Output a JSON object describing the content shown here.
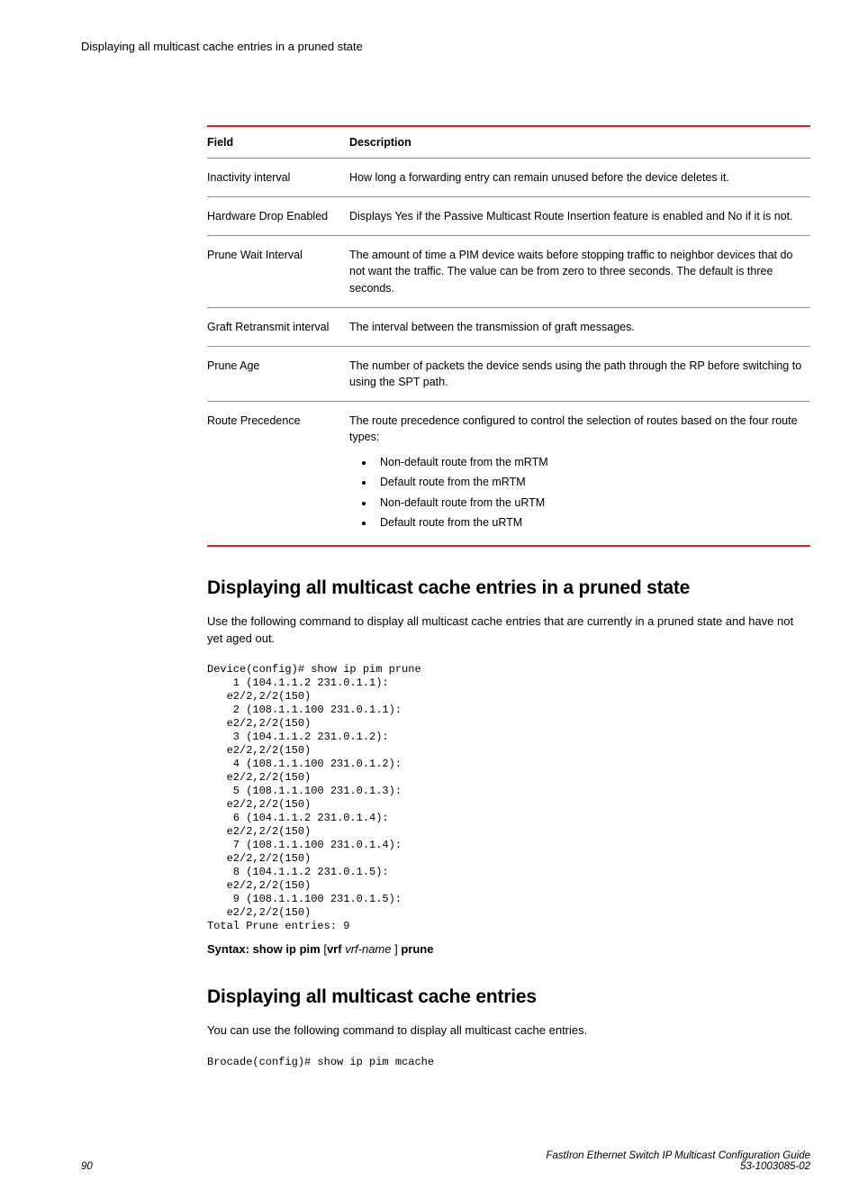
{
  "runningHeader": "Displaying all multicast cache entries in a pruned state",
  "table": {
    "headers": {
      "field": "Field",
      "description": "Description"
    },
    "rows": [
      {
        "field": "Inactivity interval",
        "description": "How long a forwarding entry can remain unused before the device deletes it."
      },
      {
        "field": "Hardware Drop Enabled",
        "description": "Displays Yes if the Passive Multicast Route Insertion feature is enabled and No if it is not."
      },
      {
        "field": "Prune Wait Interval",
        "description": "The amount of time a PIM device waits before stopping traffic to neighbor devices that do not want the traffic. The value can be from zero to three seconds. The default is three seconds."
      },
      {
        "field": "Graft Retransmit interval",
        "description": "The interval between the transmission of graft messages."
      },
      {
        "field": "Prune Age",
        "description": "The number of packets the device sends using the path through the RP before switching to using the SPT path."
      },
      {
        "field": "Route Precedence",
        "description": "The route precedence configured to control the selection of routes based on the four route types:",
        "bullets": [
          "Non-default route from the mRTM",
          "Default route from the mRTM",
          "Non-default route from the uRTM",
          "Default route from the uRTM"
        ]
      }
    ]
  },
  "section1": {
    "title": "Displaying all multicast cache entries in a pruned state",
    "intro": "Use the following command to display all multicast cache entries that are currently in a pruned state and have not yet aged out.",
    "cli": "Device(config)# show ip pim prune\n    1 (104.1.1.2 231.0.1.1):\n   e2/2,2/2(150)\n    2 (108.1.1.100 231.0.1.1):\n   e2/2,2/2(150)\n    3 (104.1.1.2 231.0.1.2):\n   e2/2,2/2(150)\n    4 (108.1.1.100 231.0.1.2):\n   e2/2,2/2(150)\n    5 (108.1.1.100 231.0.1.3):\n   e2/2,2/2(150)\n    6 (104.1.1.2 231.0.1.4):\n   e2/2,2/2(150)\n    7 (108.1.1.100 231.0.1.4):\n   e2/2,2/2(150)\n    8 (104.1.1.2 231.0.1.5):\n   e2/2,2/2(150)\n    9 (108.1.1.100 231.0.1.5):\n   e2/2,2/2(150)\nTotal Prune entries: 9",
    "syntax": {
      "prefix": "Syntax: show ip pim",
      "bracket_open": "[",
      "opt_bold": "vrf",
      "opt_ital": "vrf-name",
      "bracket_close": "]",
      "suffix": "prune"
    }
  },
  "section2": {
    "title": "Displaying all multicast cache entries",
    "intro": "You can use the following command to display all multicast cache entries.",
    "cli": "Brocade(config)# show ip pim mcache"
  },
  "footer": {
    "pageNumber": "90",
    "guide": "FastIron Ethernet Switch IP Multicast Configuration Guide",
    "docId": "53-1003085-02"
  }
}
